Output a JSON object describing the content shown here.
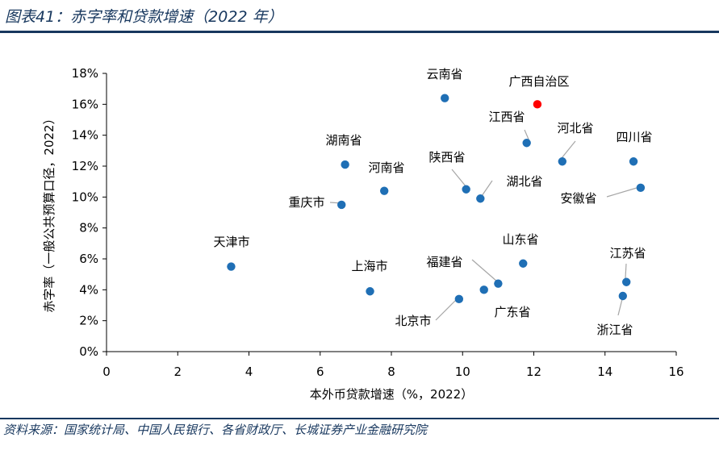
{
  "title": "图表41：赤字率和贷款增速（2022 年）",
  "source": "资料来源：国家统计局、中国人民银行、各省财政厅、长城证券产业金融研究院",
  "colors": {
    "accent": "#17375e",
    "point": "#1f6fb5",
    "highlight": "#ff0000",
    "leader": "#a6a6a6"
  },
  "chart_data": {
    "type": "scatter",
    "title": "图表41：赤字率和贷款增速（2022 年）",
    "xlabel": "本外币贷款增速（%，2022）",
    "ylabel": "赤字率（一般公共预算口径，2022）",
    "xlim": [
      0,
      16
    ],
    "ylim": [
      0,
      18
    ],
    "x_ticks": [
      "0",
      "2",
      "4",
      "6",
      "8",
      "10",
      "12",
      "14",
      "16"
    ],
    "y_ticks": [
      "0%",
      "2%",
      "4%",
      "6%",
      "8%",
      "10%",
      "12%",
      "14%",
      "16%",
      "18%"
    ],
    "points": [
      {
        "name": "云南省",
        "x": 9.5,
        "y": 16.4
      },
      {
        "name": "广西自治区",
        "x": 12.1,
        "y": 16.0,
        "highlight": true
      },
      {
        "name": "江西省",
        "x": 11.8,
        "y": 13.5
      },
      {
        "name": "河北省",
        "x": 12.8,
        "y": 12.3
      },
      {
        "name": "四川省",
        "x": 14.8,
        "y": 12.3
      },
      {
        "name": "湖南省",
        "x": 6.7,
        "y": 12.1
      },
      {
        "name": "河南省",
        "x": 7.8,
        "y": 10.4
      },
      {
        "name": "陕西省",
        "x": 10.1,
        "y": 10.5
      },
      {
        "name": "湖北省",
        "x": 10.5,
        "y": 9.9
      },
      {
        "name": "安徽省",
        "x": 15.0,
        "y": 10.6
      },
      {
        "name": "重庆市",
        "x": 6.6,
        "y": 9.5
      },
      {
        "name": "天津市",
        "x": 3.5,
        "y": 5.5
      },
      {
        "name": "上海市",
        "x": 7.4,
        "y": 3.9
      },
      {
        "name": "山东省",
        "x": 11.7,
        "y": 5.7
      },
      {
        "name": "福建省",
        "x": 11.0,
        "y": 4.4
      },
      {
        "name": "广东省",
        "x": 10.6,
        "y": 4.0
      },
      {
        "name": "北京市",
        "x": 9.9,
        "y": 3.4
      },
      {
        "name": "江苏省",
        "x": 14.6,
        "y": 4.5
      },
      {
        "name": "浙江省",
        "x": 14.5,
        "y": 3.6
      }
    ]
  }
}
